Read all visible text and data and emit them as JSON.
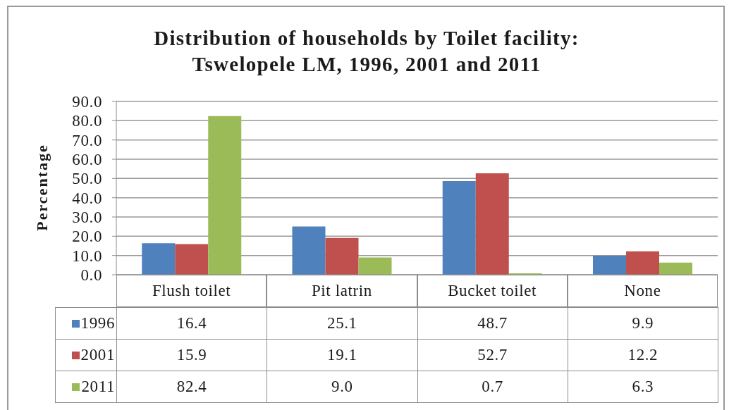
{
  "chart_data": {
    "type": "bar",
    "title": "Distribution of households by Toilet facility: Tswelopele LM, 1996, 2001 and 2011",
    "ylabel": "Percentage",
    "categories": [
      "Flush toilet",
      "Pit latrin",
      "Bucket toilet",
      "None"
    ],
    "series": [
      {
        "name": "1996",
        "color": "#4f81bd",
        "values": [
          16.4,
          25.1,
          48.7,
          9.9
        ],
        "value_labels": [
          "16.4",
          "25.1",
          "48.7",
          "9.9"
        ]
      },
      {
        "name": "2001",
        "color": "#c0504d",
        "values": [
          15.9,
          19.1,
          52.7,
          12.2
        ],
        "value_labels": [
          "15.9",
          "19.1",
          "52.7",
          "12.2"
        ]
      },
      {
        "name": "2011",
        "color": "#9bbb59",
        "values": [
          82.4,
          9.0,
          0.7,
          6.3
        ],
        "value_labels": [
          "82.4",
          "9.0",
          "0.7",
          "6.3"
        ]
      }
    ],
    "ylim": [
      0,
      90
    ],
    "yticks": [
      {
        "value": 0,
        "label": "0.0"
      },
      {
        "value": 10,
        "label": "10.0"
      },
      {
        "value": 20,
        "label": "20.0"
      },
      {
        "value": 30,
        "label": "30.0"
      },
      {
        "value": 40,
        "label": "40.0"
      },
      {
        "value": 50,
        "label": "50.0"
      },
      {
        "value": 60,
        "label": "60.0"
      },
      {
        "value": 70,
        "label": "70.0"
      },
      {
        "value": 80,
        "label": "80.0"
      },
      {
        "value": 90,
        "label": "90.0"
      }
    ],
    "grid": "y",
    "legend": "bottom"
  }
}
